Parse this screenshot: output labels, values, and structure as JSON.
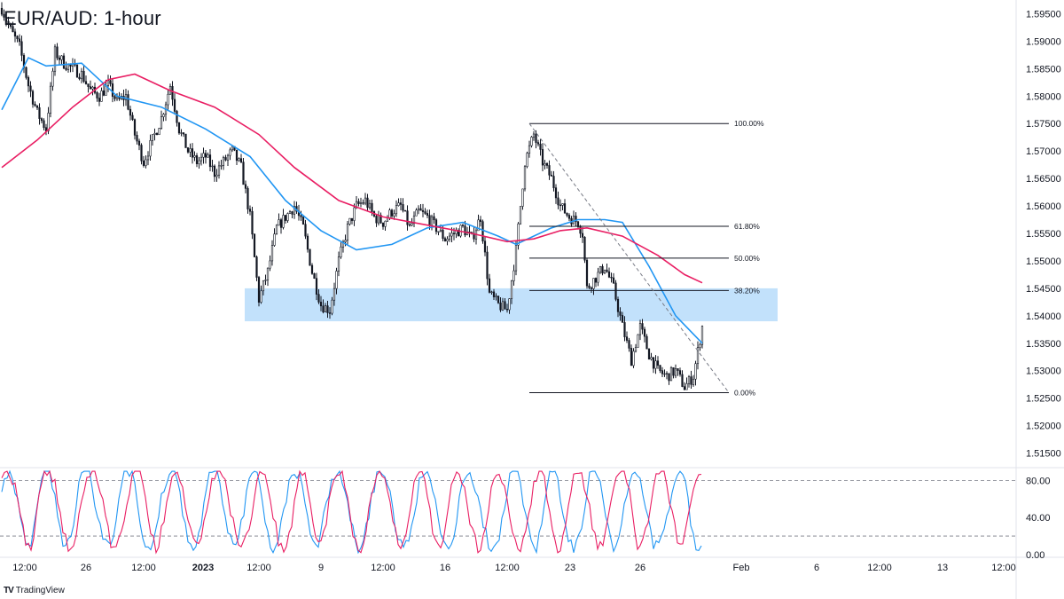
{
  "header": {
    "title": "EUR/AUD: 1-hour"
  },
  "brand": {
    "name": "TradingView",
    "logo_icon": "tradingview-logo-icon"
  },
  "colors": {
    "up_candle": "#131722",
    "down_candle": "#131722",
    "ma_fast": "#2196f3",
    "ma_slow": "#e91e63",
    "zone": "#bbdefb",
    "stoch_k": "#2196f3",
    "stoch_d": "#e91e63"
  },
  "chart_data": [
    {
      "type": "candlestick",
      "title": "EUR/AUD: 1-hour",
      "ylim": [
        1.5125,
        1.5975
      ],
      "y_tick_labels": [
        "1.51500",
        "1.52000",
        "1.52500",
        "1.53000",
        "1.53500",
        "1.54000",
        "1.54500",
        "1.55000",
        "1.55500",
        "1.56000",
        "1.56500",
        "1.57000",
        "1.57500",
        "1.58000",
        "1.58500",
        "1.59000",
        "1.59500"
      ],
      "x_tick_labels": [
        "12:00",
        "26",
        "12:00",
        "2023",
        "12:00",
        "9",
        "12:00",
        "16",
        "12:00",
        "23",
        "26",
        "Feb",
        "6",
        "12:00",
        "13",
        "12:00"
      ],
      "price_path": [
        [
          0,
          1.596
        ],
        [
          10,
          1.592
        ],
        [
          20,
          1.589
        ],
        [
          30,
          1.582
        ],
        [
          40,
          1.577
        ],
        [
          50,
          1.574
        ],
        [
          60,
          1.588
        ],
        [
          70,
          1.586
        ],
        [
          80,
          1.585
        ],
        [
          90,
          1.584
        ],
        [
          100,
          1.581
        ],
        [
          110,
          1.58
        ],
        [
          120,
          1.582
        ],
        [
          130,
          1.579
        ],
        [
          140,
          1.58
        ],
        [
          150,
          1.573
        ],
        [
          160,
          1.568
        ],
        [
          170,
          1.572
        ],
        [
          180,
          1.576
        ],
        [
          190,
          1.582
        ],
        [
          200,
          1.574
        ],
        [
          210,
          1.57
        ],
        [
          220,
          1.568
        ],
        [
          230,
          1.569
        ],
        [
          240,
          1.566
        ],
        [
          250,
          1.568
        ],
        [
          260,
          1.57
        ],
        [
          270,
          1.567
        ],
        [
          280,
          1.558
        ],
        [
          290,
          1.543
        ],
        [
          300,
          1.548
        ],
        [
          310,
          1.556
        ],
        [
          320,
          1.558
        ],
        [
          330,
          1.56
        ],
        [
          340,
          1.556
        ],
        [
          350,
          1.548
        ],
        [
          360,
          1.542
        ],
        [
          370,
          1.541
        ],
        [
          380,
          1.55
        ],
        [
          390,
          1.556
        ],
        [
          400,
          1.56
        ],
        [
          410,
          1.561
        ],
        [
          420,
          1.558
        ],
        [
          430,
          1.557
        ],
        [
          440,
          1.559
        ],
        [
          450,
          1.56
        ],
        [
          460,
          1.556
        ],
        [
          470,
          1.559
        ],
        [
          480,
          1.558
        ],
        [
          490,
          1.556
        ],
        [
          500,
          1.554
        ],
        [
          510,
          1.555
        ],
        [
          520,
          1.556
        ],
        [
          530,
          1.554
        ],
        [
          540,
          1.558
        ],
        [
          550,
          1.544
        ],
        [
          560,
          1.542
        ],
        [
          570,
          1.541
        ],
        [
          580,
          1.552
        ],
        [
          590,
          1.568
        ],
        [
          600,
          1.573
        ],
        [
          610,
          1.568
        ],
        [
          620,
          1.565
        ],
        [
          630,
          1.56
        ],
        [
          640,
          1.558
        ],
        [
          650,
          1.557
        ],
        [
          655,
          1.555
        ],
        [
          660,
          1.545
        ],
        [
          670,
          1.547
        ],
        [
          680,
          1.549
        ],
        [
          690,
          1.545
        ],
        [
          700,
          1.538
        ],
        [
          710,
          1.532
        ],
        [
          720,
          1.538
        ],
        [
          730,
          1.533
        ],
        [
          740,
          1.53
        ],
        [
          750,
          1.529
        ],
        [
          760,
          1.53
        ],
        [
          770,
          1.527
        ],
        [
          780,
          1.529
        ],
        [
          790,
          1.538
        ]
      ],
      "series": [
        {
          "name": "",
          "values": [
            [
              0,
              1.5775
            ],
            [
              30,
              1.587
            ],
            [
              50,
              1.5855
            ],
            [
              90,
              1.586
            ],
            [
              130,
              1.58
            ],
            [
              180,
              1.578
            ],
            [
              230,
              1.574
            ],
            [
              280,
              1.569
            ],
            [
              320,
              1.561
            ],
            [
              360,
              1.5555
            ],
            [
              400,
              1.552
            ],
            [
              440,
              1.553
            ],
            [
              480,
              1.556
            ],
            [
              520,
              1.557
            ],
            [
              560,
              1.5545
            ],
            [
              580,
              1.553
            ],
            [
              620,
              1.556
            ],
            [
              650,
              1.5575
            ],
            [
              680,
              1.5575
            ],
            [
              700,
              1.557
            ],
            [
              730,
              1.549
            ],
            [
              760,
              1.54
            ],
            [
              790,
              1.535
            ]
          ]
        },
        {
          "name": "",
          "values": [
            [
              0,
              1.567
            ],
            [
              40,
              1.572
            ],
            [
              80,
              1.578
            ],
            [
              120,
              1.583
            ],
            [
              150,
              1.584
            ],
            [
              190,
              1.581
            ],
            [
              240,
              1.578
            ],
            [
              290,
              1.573
            ],
            [
              330,
              1.567
            ],
            [
              380,
              1.561
            ],
            [
              430,
              1.558
            ],
            [
              480,
              1.5565
            ],
            [
              530,
              1.555
            ],
            [
              570,
              1.5535
            ],
            [
              600,
              1.554
            ],
            [
              630,
              1.5555
            ],
            [
              660,
              1.556
            ],
            [
              700,
              1.5545
            ],
            [
              740,
              1.551
            ],
            [
              770,
              1.5475
            ],
            [
              790,
              1.546
            ]
          ]
        }
      ],
      "fibonacci": {
        "levels": [
          {
            "label": "100.00%",
            "price": 1.575
          },
          {
            "label": "61.80%",
            "price": 1.5563
          },
          {
            "label": "50.00%",
            "price": 1.5505
          },
          {
            "label": "38.20%",
            "price": 1.5446
          },
          {
            "label": "0.00%",
            "price": 1.526
          }
        ]
      },
      "zone": {
        "price_top": 1.545,
        "price_bottom": 1.539
      }
    },
    {
      "type": "line",
      "title": "",
      "ylim": [
        -2,
        92
      ],
      "y_tick_labels": [
        "80.00",
        "40.00",
        "0.00"
      ],
      "reference_lines": [
        80,
        20
      ],
      "series": [
        {
          "name": "",
          "seed": 11
        },
        {
          "name": "",
          "seed": 23
        }
      ]
    }
  ]
}
